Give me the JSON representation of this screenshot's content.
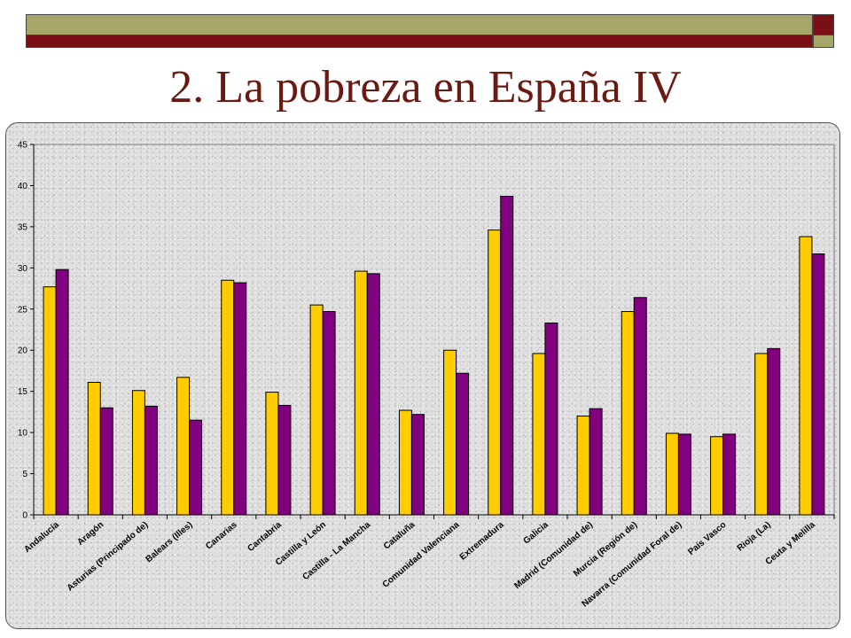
{
  "slide": {
    "title": "2. La pobreza en España IV",
    "title_color": "#6b1a12"
  },
  "theme": {
    "band_color": "#a6a66a",
    "accent_color": "#7b0f16",
    "frame_bg": "#dcdcdc"
  },
  "chart_data": {
    "type": "bar",
    "title": "",
    "xlabel": "",
    "ylabel": "",
    "ylim": [
      0,
      45
    ],
    "yticks": [
      0,
      5,
      10,
      15,
      20,
      25,
      30,
      35,
      40,
      45
    ],
    "grid": false,
    "legend": "none",
    "categories": [
      "Andalucía",
      "Aragón",
      "Asturias (Principado de)",
      "Balears (Illes)",
      "Canarias",
      "Cantabria",
      "Castilla y León",
      "Castilla - La Mancha",
      "Cataluña",
      "Comunidad Valenciana",
      "Extremadura",
      "Galicia",
      "Madrid (Comunidad de)",
      "Murcia (Región de)",
      "Navarra (Comunidad Foral de)",
      "País Vasco",
      "Rioja (La)",
      "Ceuta y Melilla"
    ],
    "series": [
      {
        "color": "#ffcc00",
        "values": [
          27.7,
          16.1,
          15.1,
          16.7,
          28.5,
          14.9,
          25.5,
          29.6,
          12.7,
          20.0,
          34.6,
          19.6,
          12.0,
          24.7,
          9.9,
          9.5,
          19.6,
          33.8
        ]
      },
      {
        "color": "#800080",
        "values": [
          29.8,
          13.0,
          13.2,
          11.5,
          28.2,
          13.3,
          24.7,
          29.3,
          12.2,
          17.2,
          38.7,
          23.3,
          12.9,
          26.4,
          9.8,
          9.8,
          20.2,
          31.7
        ]
      }
    ]
  }
}
